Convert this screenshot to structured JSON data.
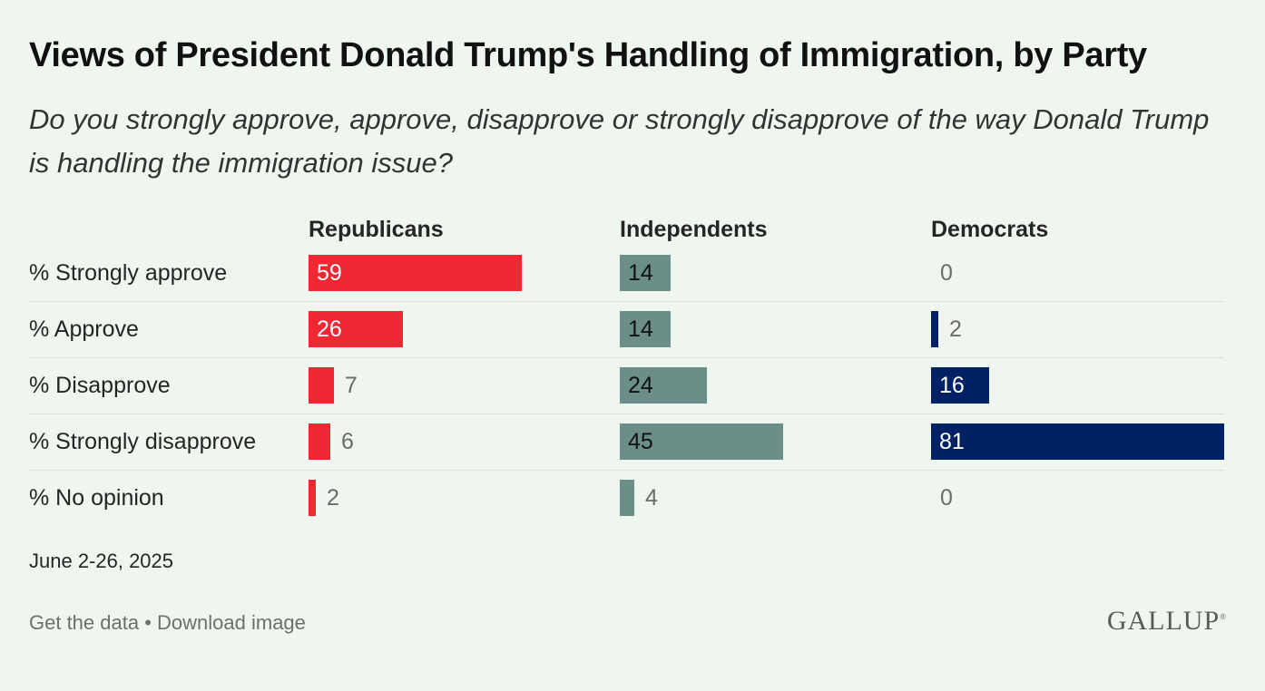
{
  "title": "Views of President Donald Trump's Handling of Immigration, by Party",
  "subtitle": "Do you strongly approve, approve, disapprove or strongly disapprove of the way Donald Trump is handling the immigration issue?",
  "date_note": "June 2-26, 2025",
  "footer": {
    "get_data": "Get the data",
    "separator": " • ",
    "download": "Download image"
  },
  "logo": {
    "text": "GALLUP",
    "mark": "®"
  },
  "colors": {
    "republicans": "#f02834",
    "independents": "#6b8f88",
    "democrats": "#002163",
    "background": "#eef6ef"
  },
  "chart_data": {
    "type": "bar",
    "orientation": "horizontal",
    "categories": [
      "% Strongly approve",
      "% Approve",
      "% Disapprove",
      "% Strongly disapprove",
      "% No opinion"
    ],
    "series": [
      {
        "name": "Republicans",
        "values": [
          59,
          26,
          7,
          6,
          2
        ]
      },
      {
        "name": "Independents",
        "values": [
          14,
          14,
          24,
          45,
          4
        ]
      },
      {
        "name": "Democrats",
        "values": [
          0,
          2,
          16,
          81,
          0
        ]
      }
    ],
    "xlim": [
      0,
      100
    ]
  }
}
